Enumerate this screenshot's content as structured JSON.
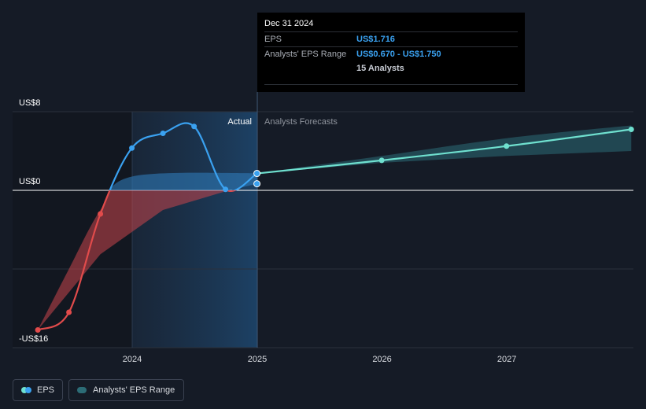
{
  "chart_data": {
    "type": "line",
    "title": "",
    "xlabel": "",
    "ylabel": "",
    "x_ticks": [
      "2024",
      "2025",
      "2026",
      "2027"
    ],
    "y_ticks": [
      {
        "label": "US$8",
        "value": 8
      },
      {
        "label": "US$0",
        "value": 0
      },
      {
        "label": "-US$16",
        "value": -16
      }
    ],
    "ylim": [
      -16,
      8
    ],
    "grid": true,
    "divider_label_left": "Actual",
    "divider_label_right": "Analysts Forecasts",
    "series": [
      {
        "name": "EPS",
        "color_past_negative": "#e14b4b",
        "color_past_positive": "#3aa1f0",
        "points": [
          {
            "x": "2023-03-31",
            "y": -14.2
          },
          {
            "x": "2023-06-30",
            "y": -12.4
          },
          {
            "x": "2023-09-30",
            "y": -2.4
          },
          {
            "x": "2023-12-31",
            "y": 4.3
          },
          {
            "x": "2024-03-31",
            "y": 5.8
          },
          {
            "x": "2024-06-30",
            "y": 6.5
          },
          {
            "x": "2024-09-30",
            "y": 0.1
          },
          {
            "x": "2024-12-31",
            "y": 1.716
          }
        ]
      },
      {
        "name": "EPS forecast",
        "color": "#6fe0cf",
        "points": [
          {
            "x": "2024-12-31",
            "y": 1.716
          },
          {
            "x": "2025-12-31",
            "y": 3.05
          },
          {
            "x": "2026-12-31",
            "y": 4.5
          },
          {
            "x": "2027-12-31",
            "y": 6.2
          }
        ]
      },
      {
        "name": "Analysts' EPS Range",
        "type": "area",
        "color": "#2c6c76",
        "past_low": [
          {
            "x": "2023-03-31",
            "y": -14.2
          },
          {
            "x": "2023-09-30",
            "y": -6.5
          },
          {
            "x": "2024-03-31",
            "y": -2.0
          },
          {
            "x": "2024-09-30",
            "y": -0.1
          },
          {
            "x": "2024-12-31",
            "y": 0.67
          }
        ],
        "past_high": [
          {
            "x": "2023-03-31",
            "y": -14.2
          },
          {
            "x": "2023-06-30",
            "y": -8.0
          },
          {
            "x": "2023-09-30",
            "y": -2.0
          },
          {
            "x": "2023-12-31",
            "y": 1.4
          },
          {
            "x": "2024-12-31",
            "y": 1.75
          }
        ],
        "forecast_low": [
          {
            "x": "2024-12-31",
            "y": 1.716
          },
          {
            "x": "2025-12-31",
            "y": 2.8
          },
          {
            "x": "2026-12-31",
            "y": 3.5
          },
          {
            "x": "2027-12-31",
            "y": 4.0
          }
        ],
        "forecast_high": [
          {
            "x": "2024-12-31",
            "y": 1.716
          },
          {
            "x": "2025-12-31",
            "y": 3.5
          },
          {
            "x": "2026-12-31",
            "y": 5.3
          },
          {
            "x": "2027-12-31",
            "y": 6.6
          }
        ]
      }
    ],
    "hover_marker": {
      "x": "2024-12-31",
      "y": 0.67
    }
  },
  "tooltip": {
    "date": "Dec 31 2024",
    "rows": [
      {
        "label": "EPS",
        "value": "US$1.716"
      },
      {
        "label": "Analysts' EPS Range",
        "value": "US$0.670 - US$1.750"
      },
      {
        "label": "",
        "value": "15 Analysts"
      }
    ]
  },
  "legend": {
    "items": [
      {
        "label": "EPS",
        "colors": [
          "#3aa1f0",
          "#6fe0cf"
        ]
      },
      {
        "label": "Analysts' EPS Range",
        "color": "#2c6c76"
      }
    ]
  }
}
